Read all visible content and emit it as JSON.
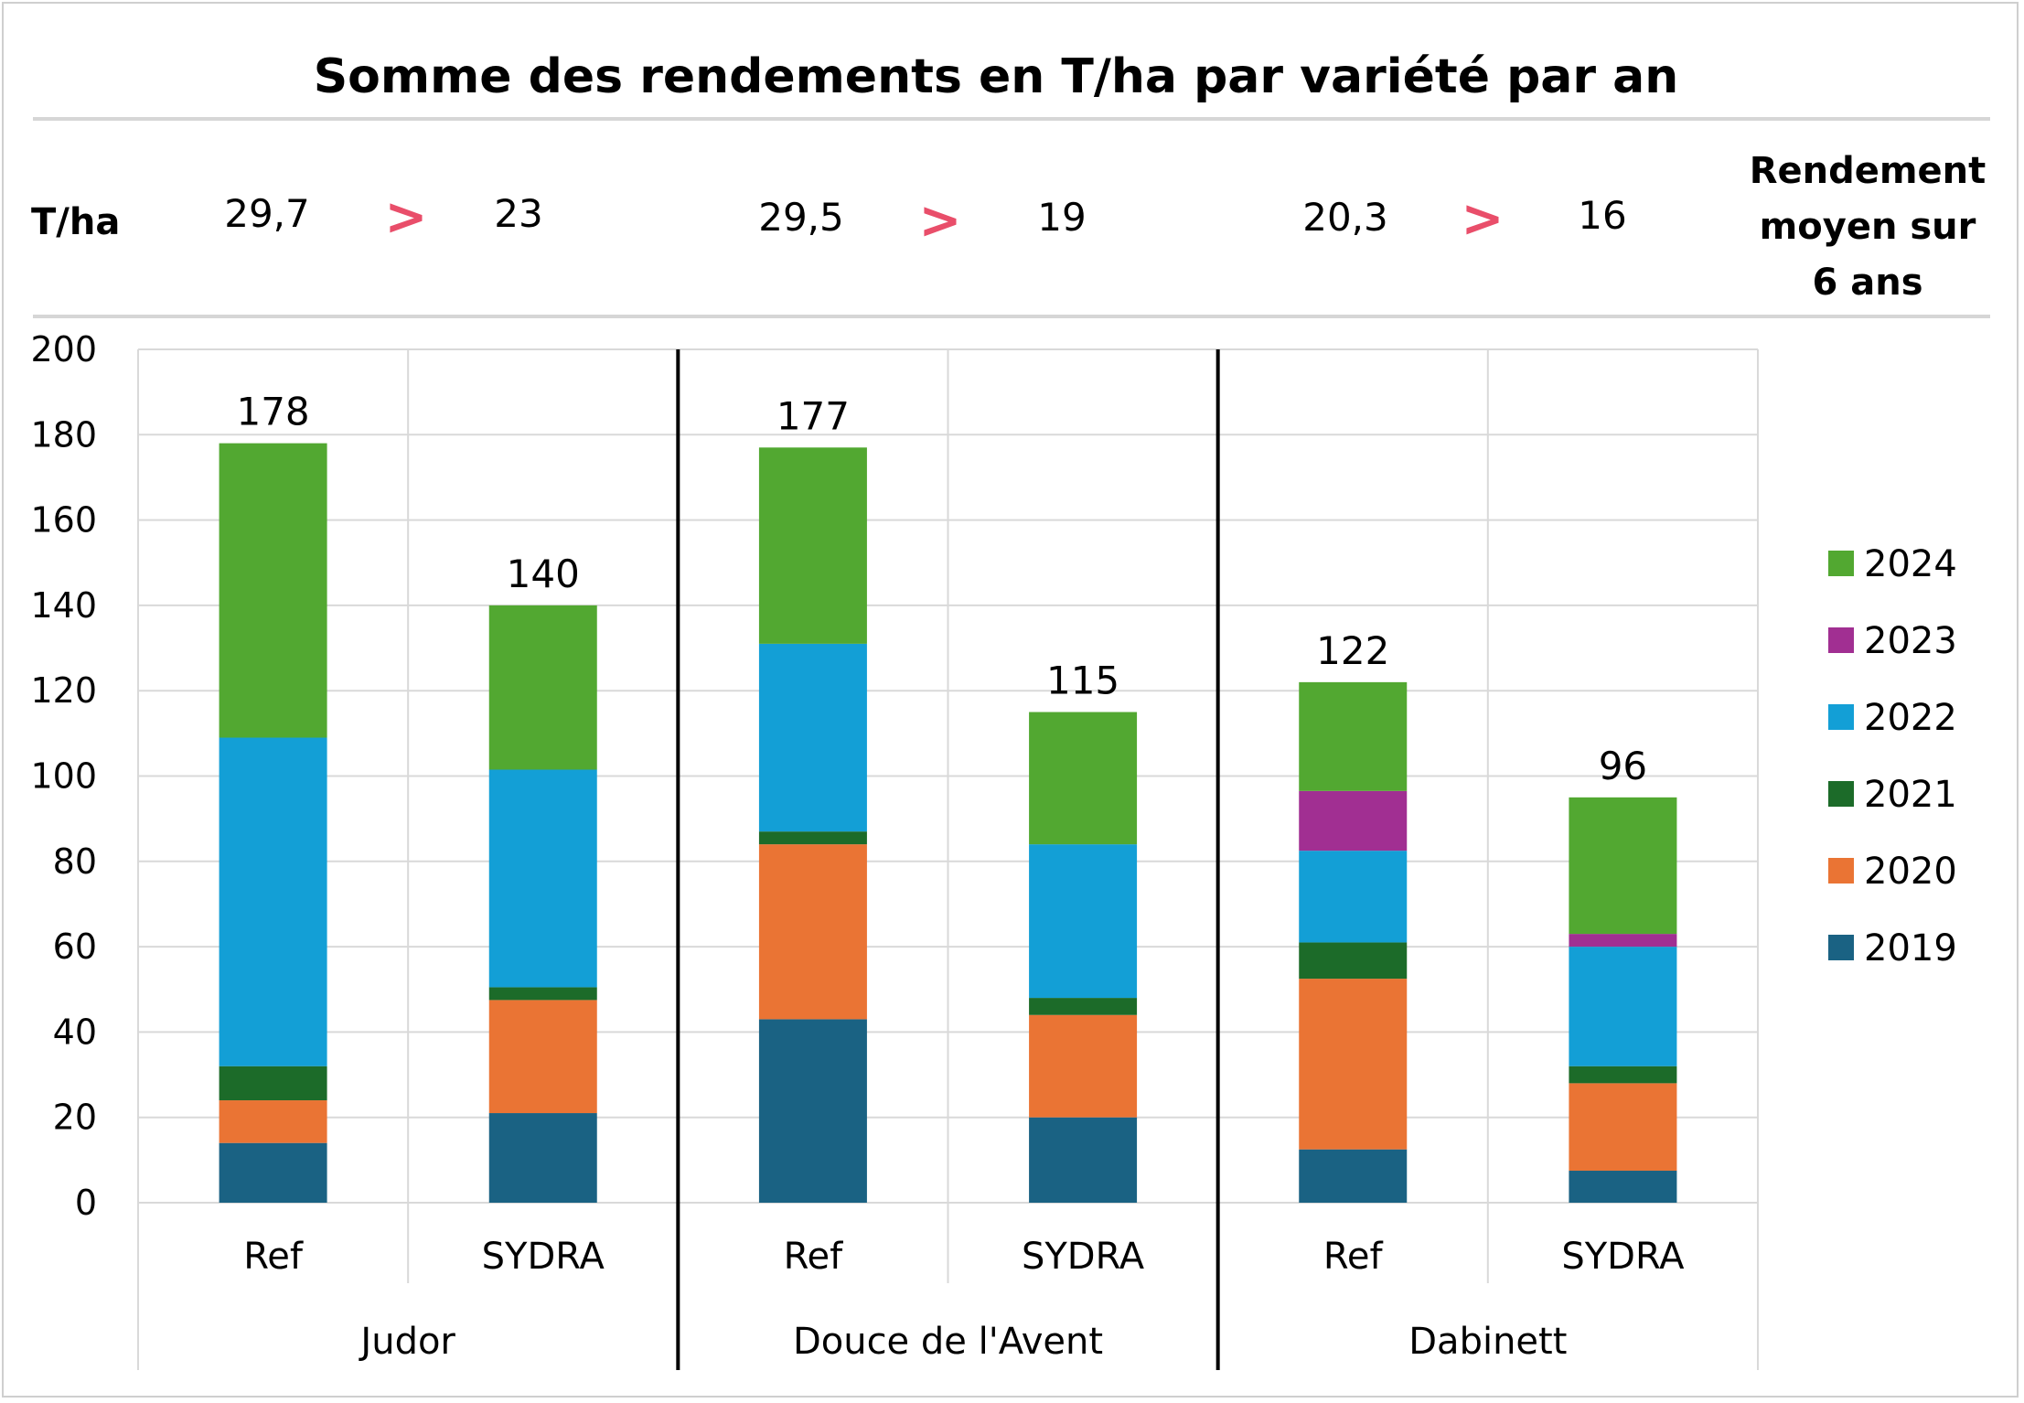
{
  "header": {
    "unit_label": "T/ha",
    "comparisons": [
      {
        "ref": "29,7",
        "symbol": ">",
        "sydra": "23"
      },
      {
        "ref": "29,5",
        "symbol": ">",
        "sydra": "19"
      },
      {
        "ref": "20,3",
        "symbol": ">",
        "sydra": "16"
      }
    ],
    "note_lines": [
      "Rendement",
      "moyen sur",
      "6 ans"
    ]
  },
  "colors": {
    "2019": "#1a6283",
    "2020": "#ea7434",
    "2021": "#1c6b29",
    "2022": "#139fd6",
    "2023": "#a12f92",
    "2024": "#52a831",
    "accent_symbol": "#e94e6a",
    "grid": "#d9d9d9",
    "separator": "#000000"
  },
  "chart_data": {
    "type": "bar",
    "stacked": true,
    "title": "Somme des rendements en T/ha par variété par an",
    "xlabel": "",
    "ylabel": "",
    "ylim": [
      0,
      200
    ],
    "yticks": [
      0,
      20,
      40,
      60,
      80,
      100,
      120,
      140,
      160,
      180,
      200
    ],
    "grid": true,
    "legend_position": "right",
    "groups": [
      "Judor",
      "Douce de l'Avent",
      "Dabinett"
    ],
    "categories": [
      "Ref",
      "SYDRA",
      "Ref",
      "SYDRA",
      "Ref",
      "SYDRA"
    ],
    "totals": [
      "178",
      "140",
      "177",
      "115",
      "122",
      "96"
    ],
    "series": [
      {
        "name": "2019",
        "values": [
          14,
          21,
          43,
          20,
          12.5,
          7.5
        ]
      },
      {
        "name": "2020",
        "values": [
          10,
          26.5,
          41,
          24,
          40,
          20.5
        ]
      },
      {
        "name": "2021",
        "values": [
          8,
          3,
          3,
          4,
          8.5,
          4
        ]
      },
      {
        "name": "2022",
        "values": [
          77,
          51,
          44,
          36,
          21.5,
          28
        ]
      },
      {
        "name": "2023",
        "values": [
          0,
          0,
          0,
          0,
          14,
          3
        ]
      },
      {
        "name": "2024",
        "values": [
          69,
          38.5,
          46,
          31,
          25.5,
          32
        ]
      }
    ],
    "legend_order": [
      "2024",
      "2023",
      "2022",
      "2021",
      "2020",
      "2019"
    ]
  }
}
